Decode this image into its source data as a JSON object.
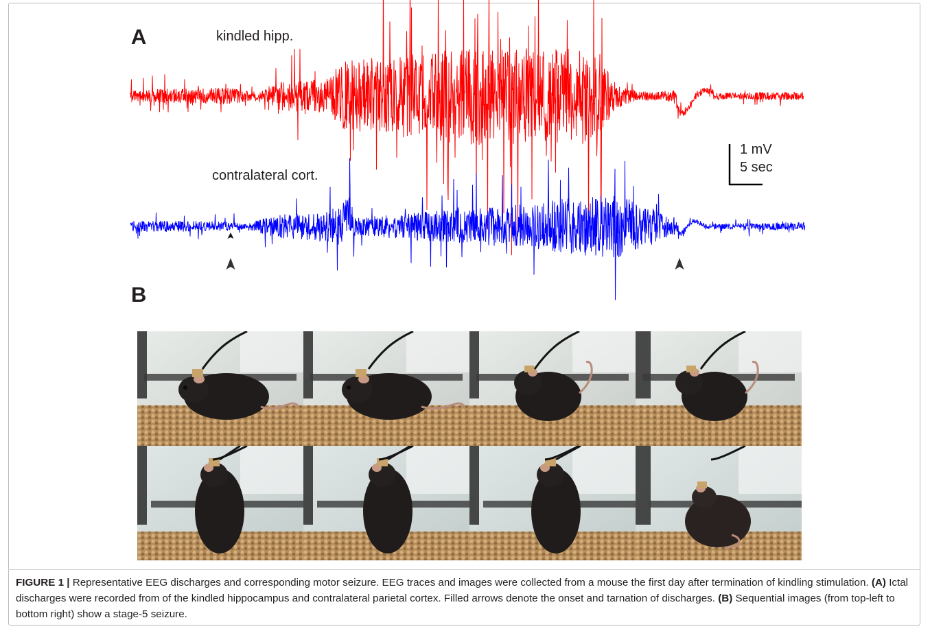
{
  "panel_a": {
    "letter": "A",
    "trace_top_label": "kindled hipp.",
    "trace_bottom_label": "contralateral cort.",
    "scale_voltage": "1 mV",
    "scale_time": "5 sec",
    "trace_top_color": "#ff0000",
    "trace_bottom_color": "#0000ff",
    "onset_arrow": "arrowhead-up-icon",
    "termination_arrow": "arrowhead-up-icon"
  },
  "panel_b": {
    "letter": "B",
    "photos": [
      {
        "pose": "mouse-crouching"
      },
      {
        "pose": "mouse-crouching"
      },
      {
        "pose": "mouse-head-raised"
      },
      {
        "pose": "mouse-head-raised"
      },
      {
        "pose": "mouse-rearing"
      },
      {
        "pose": "mouse-rearing"
      },
      {
        "pose": "mouse-rearing"
      },
      {
        "pose": "mouse-falling"
      }
    ]
  },
  "caption": {
    "label": "FIGURE 1 |",
    "intro": "Representative EEG discharges and corresponding motor seizure. EEG traces and images were collected from a mouse the first day after termination of kindling stimulation.",
    "a_tag": "(A)",
    "a_text": "Ictal discharges were recorded from of the kindled hippocampus and contralateral parietal cortex. Filled arrows denote the onset and tarnation of discharges.",
    "b_tag": "(B)",
    "b_text": "Sequential images (from top-left to bottom right) show a stage-5 seizure."
  }
}
